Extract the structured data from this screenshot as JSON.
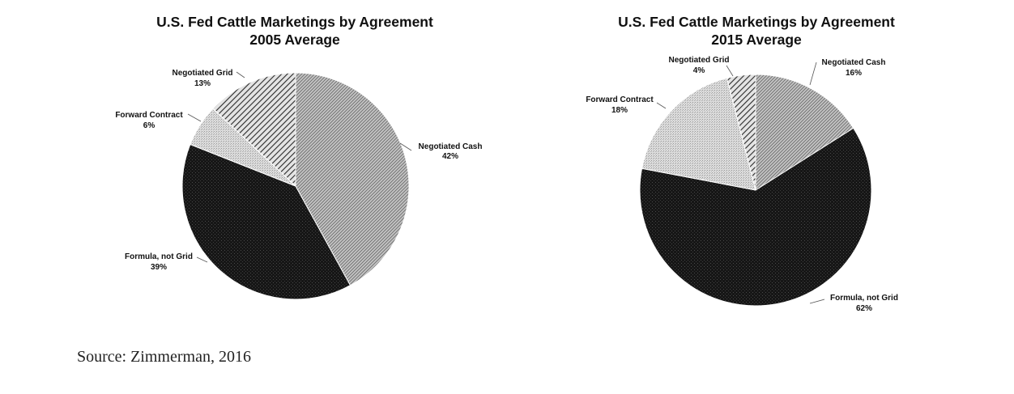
{
  "chart_data": [
    {
      "type": "pie",
      "title": "U.S. Fed Cattle Marketings by Agreement",
      "subtitle": "2005 Average",
      "slices": [
        {
          "label": "Negotiated Cash",
          "value": 42,
          "value_label": "42%",
          "pattern": "dense-diagonal-light"
        },
        {
          "label": "Formula, not Grid",
          "value": 39,
          "value_label": "39%",
          "pattern": "dark-speckle"
        },
        {
          "label": "Forward Contract",
          "value": 6,
          "value_label": "6%",
          "pattern": "light-stipple"
        },
        {
          "label": "Negotiated Grid",
          "value": 13,
          "value_label": "13%",
          "pattern": "diagonal-hatch"
        }
      ]
    },
    {
      "type": "pie",
      "title": "U.S. Fed Cattle Marketings by Agreement",
      "subtitle": "2015 Average",
      "slices": [
        {
          "label": "Negotiated Cash",
          "value": 16,
          "value_label": "16%",
          "pattern": "dense-diagonal-light"
        },
        {
          "label": "Formula, not Grid",
          "value": 62,
          "value_label": "62%",
          "pattern": "dark-speckle"
        },
        {
          "label": "Forward Contract",
          "value": 18,
          "value_label": "18%",
          "pattern": "light-stipple"
        },
        {
          "label": "Negotiated Grid",
          "value": 4,
          "value_label": "4%",
          "pattern": "diagonal-hatch"
        }
      ]
    }
  ],
  "source": "Source: Zimmerman, 2016",
  "colors": {
    "background": "#ffffff",
    "text": "#111111",
    "dark_fill": "#1a1a1a",
    "medium_fill": "#8a8a8a",
    "light_fill": "#d2d2d2"
  }
}
